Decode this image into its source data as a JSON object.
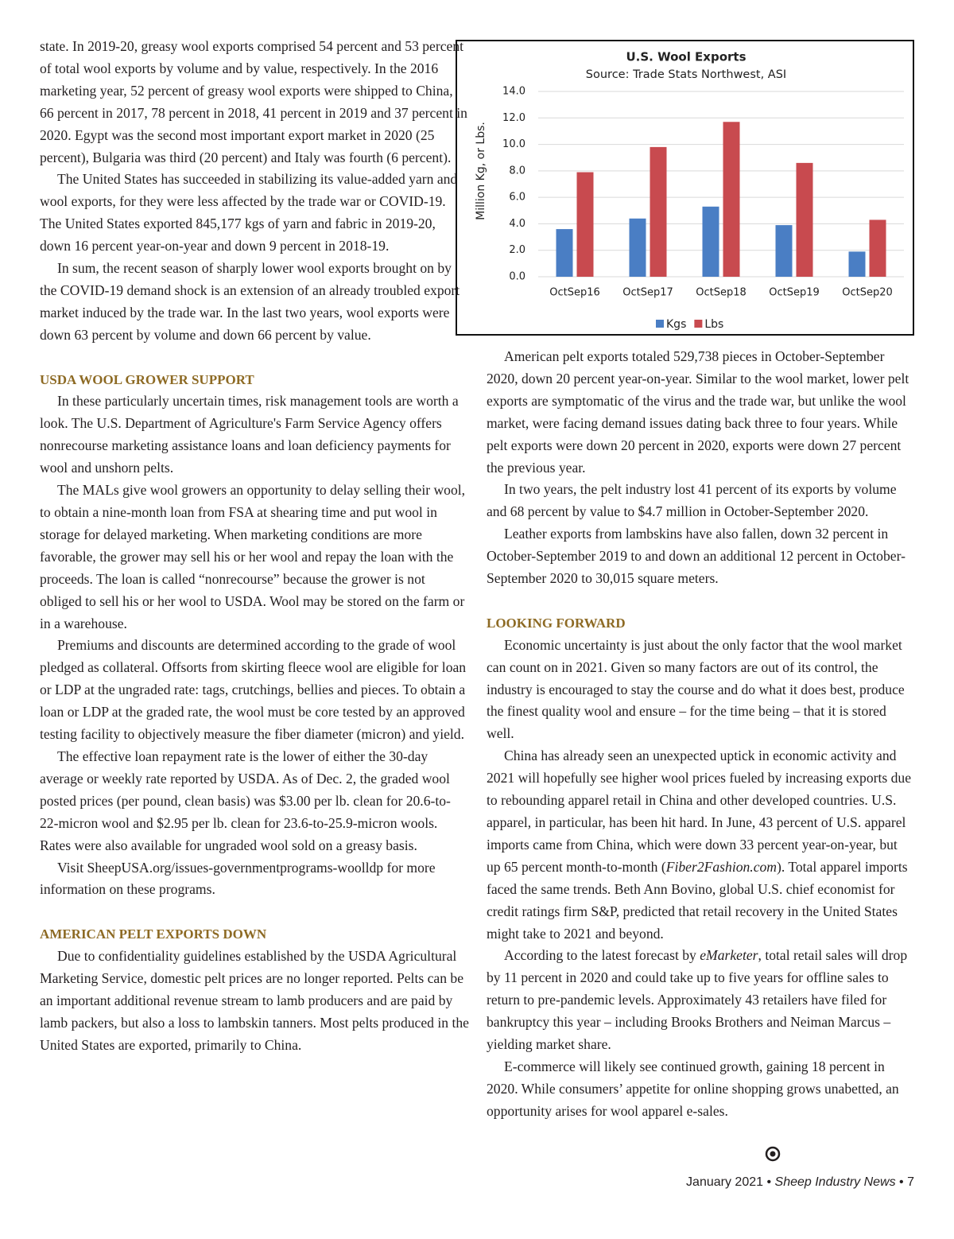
{
  "columns": [
    {
      "paragraphs": [
        "state. In 2019-20, greasy wool exports comprised 54 percent and 53 percent of total wool exports by volume and by value, respectively. In the 2016 marketing year, 52 percent of greasy wool exports were shipped to China, 66 percent in 2017, 78 percent in 2018, 41 percent in 2019 and 37 percent in 2020. Egypt was the second most important export market in 2020 (25 percent), Bulgaria was third (20 percent) and Italy was fourth (6 percent).",
        "The United States has succeeded in stabilizing its value-added yarn and wool exports, for they were less affected by the trade war or COVID-19. The United States exported 845,177 kgs of yarn and fabric in 2019-20, down 16 percent year-on-year and down 9 percent in 2018-19.",
        "In sum, the recent season of sharply lower wool exports brought on by the COVID-19 demand shock is an extension of an already troubled export market induced by the trade war. In the last two years, wool exports were down 63 percent by volume and down 66 percent by value."
      ],
      "sections": [
        {
          "heading": "USDA WOOL GROWER SUPPORT",
          "paragraphs": [
            "In these particularly uncertain times, risk management tools are worth a look. The U.S. Department of Agriculture's Farm Service Agency offers nonrecourse marketing assistance loans and loan deficiency payments for wool and unshorn pelts.",
            "The MALs give wool growers an opportunity to delay selling their wool, to obtain a nine-month loan from FSA at shearing time and put wool in storage for delayed marketing. When marketing conditions are more favorable, the grower may sell his or her wool and repay the loan with the proceeds. The loan is called “nonrecourse” because the grower is not obliged to sell his or her wool to USDA. Wool may be stored on the farm or in a warehouse.",
            "Premiums and discounts are determined according to the grade of wool pledged as collateral. Offsorts from skirting fleece wool are eligible for loan or LDP at the ungraded rate: tags, crutchings, bellies and pieces. To obtain a loan or LDP at the graded rate, the wool must be core tested by an approved testing facility to objectively measure the fiber diameter (micron) and yield.",
            "The effective loan repayment rate is the lower of either the 30-day average or weekly rate reported by USDA. As of Dec. 2, the graded wool posted prices (per pound, clean basis) was $3.00 per lb. clean for 20.6-to-22-micron wool and $2.95 per lb. clean for 23.6-to-25.9-micron wools. Rates were also available for ungraded wool sold on a greasy basis.",
            "Visit SheepUSA.org/issues-governmentprograms-woolldp for more information on these programs."
          ]
        },
        {
          "heading": "AMERICAN PELT EXPORTS DOWN",
          "paragraphs": [
            "Due to confidentiality guidelines established by the USDA Agricultural Marketing Service, domestic pelt prices are no longer reported. Pelts can be an important additional revenue stream to lamb producers and are paid by lamb packers, but also a loss to lambskin tanners. Most pelts produced in the United States are exported, primarily to China."
          ]
        }
      ]
    },
    {
      "paragraphs": [
        "American pelt exports totaled 529,738 pieces in October-September 2020, down 20 percent year-on-year. Similar to the wool market, lower pelt exports are symptomatic of the virus and the trade war, but unlike the wool market, were facing demand issues dating back three to four years. While pelt exports were down 20 percent in 2020, exports were down 27 percent the previous year.",
        "In two years, the pelt industry lost 41 percent of its exports by volume and 68 percent by value to $4.7 million in October-September 2020.",
        "Leather exports from lambskins have also fallen, down 32 percent in October-September 2019 to and down an additional 12 percent in October-September 2020 to 30,015 square meters."
      ],
      "sections": [
        {
          "heading": "LOOKING FORWARD",
          "paragraphs": [
            "Economic uncertainty is just about the only factor that the wool market can count on in 2021. Given so many factors are out of its control, the industry is encouraged to stay the course and do what it does best, produce the finest quality wool and ensure – for the time being – that it is stored well.",
            {
              "runs": [
                {
                  "text": "China has already seen an unexpected uptick in economic activity and 2021 will hopefully see higher wool prices fueled by increasing exports due to rebounding apparel retail in China and other developed countries. U.S. apparel, in particular, has been hit hard. In June, 43 percent of U.S. apparel imports came from China, which were down 33 percent year-on-year, but up 65 percent month-to-month ("
                },
                {
                  "text": "Fiber2Fashion.com",
                  "italic": true
                },
                {
                  "text": "). Total apparel imports faced the same trends. Beth Ann Bovino, global U.S. chief economist for credit ratings firm S&P, predicted that retail recovery in the United States might take to 2021 and beyond."
                }
              ]
            },
            {
              "runs": [
                {
                  "text": "According to the latest forecast by "
                },
                {
                  "text": "eMarketer",
                  "italic": true
                },
                {
                  "text": ", total retail sales will drop by 11 percent in 2020 and could take up to five years for offline sales to return to pre-pandemic levels. Approximately 43 retailers have filed for bankruptcy this year – including Brooks Brothers and Neiman Marcus – yielding market share."
                }
              ]
            },
            "E-commerce will likely see continued growth, gaining 18 percent in 2020. While consumers’ appetite for online shopping grows unabetted, an opportunity arises for wool apparel e-sales."
          ]
        }
      ]
    }
  ],
  "chart_data": {
    "type": "bar",
    "title": "U.S. Wool Exports",
    "subtitle": "Source: Trade Stats Northwest, ASI",
    "y_label": "Million Kg, or Lbs.",
    "categories": [
      "OctSep16",
      "OctSep17",
      "OctSep18",
      "OctSep19",
      "OctSep20"
    ],
    "series": [
      {
        "name": "Kgs",
        "color": "#4a7ec4",
        "values": [
          3.6,
          4.4,
          5.3,
          3.9,
          1.9
        ]
      },
      {
        "name": "Lbs",
        "color": "#c84a4f",
        "values": [
          7.9,
          9.8,
          11.7,
          8.6,
          4.3
        ]
      }
    ],
    "ylim": [
      0,
      14
    ],
    "yticks": [
      {
        "value": 0,
        "label": "0.0"
      },
      {
        "value": 2,
        "label": "2.0"
      },
      {
        "value": 4,
        "label": "4.0"
      },
      {
        "value": 6,
        "label": "6.0"
      },
      {
        "value": 8,
        "label": "8.0"
      },
      {
        "value": 10,
        "label": "10.0"
      },
      {
        "value": 12,
        "label": "12.0"
      },
      {
        "value": 14,
        "label": "14.0"
      }
    ],
    "grid": true,
    "legend": "bottom"
  },
  "footer": {
    "runs": [
      {
        "text": "January 2021 •"
      },
      {
        "text": "Sheep Industry News",
        "italic": true
      },
      {
        "text": "• 7"
      }
    ]
  }
}
